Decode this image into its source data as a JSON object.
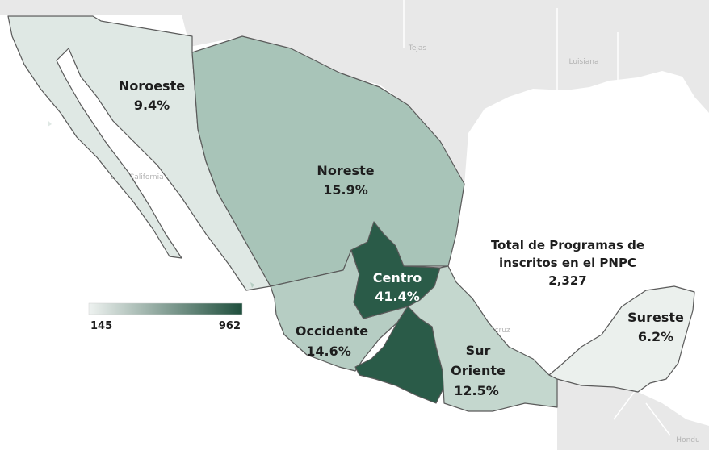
{
  "map": {
    "background_labels": [
      {
        "name": "texas-label",
        "text": "Tejas"
      },
      {
        "name": "louisiana-label",
        "text": "Luisiana"
      },
      {
        "name": "baja-california-label",
        "text": "Baja California"
      },
      {
        "name": "veracruz-label",
        "text": "Veracruz"
      },
      {
        "name": "honduras-label",
        "text": "Hondu"
      }
    ],
    "regions": [
      {
        "id": "noroeste",
        "name": "Noroeste",
        "percent": "9.4%",
        "color": "#dfe8e4"
      },
      {
        "id": "noreste",
        "name": "Noreste",
        "percent": "15.9%",
        "color": "#a8c4b8"
      },
      {
        "id": "centro",
        "name": "Centro",
        "percent": "41.4%",
        "color": "#2a5b48"
      },
      {
        "id": "occidente",
        "name": "Occidente",
        "percent": "14.6%",
        "color": "#b6cdc3"
      },
      {
        "id": "sur",
        "name": "Sur Oriente",
        "name_line1": "Sur",
        "name_line2": "Oriente",
        "percent": "12.5%",
        "color": "#c4d7ce"
      },
      {
        "id": "sureste",
        "name": "Sureste",
        "percent": "6.2%",
        "color": "#ebf0ed"
      }
    ],
    "total": {
      "line1": "Total de Programas de",
      "line2": "inscritos en el PNPC",
      "value": "2,327"
    },
    "legend": {
      "min": "145",
      "max": "962",
      "color_low": "#eef2f0",
      "color_high": "#1f4f3d"
    }
  }
}
